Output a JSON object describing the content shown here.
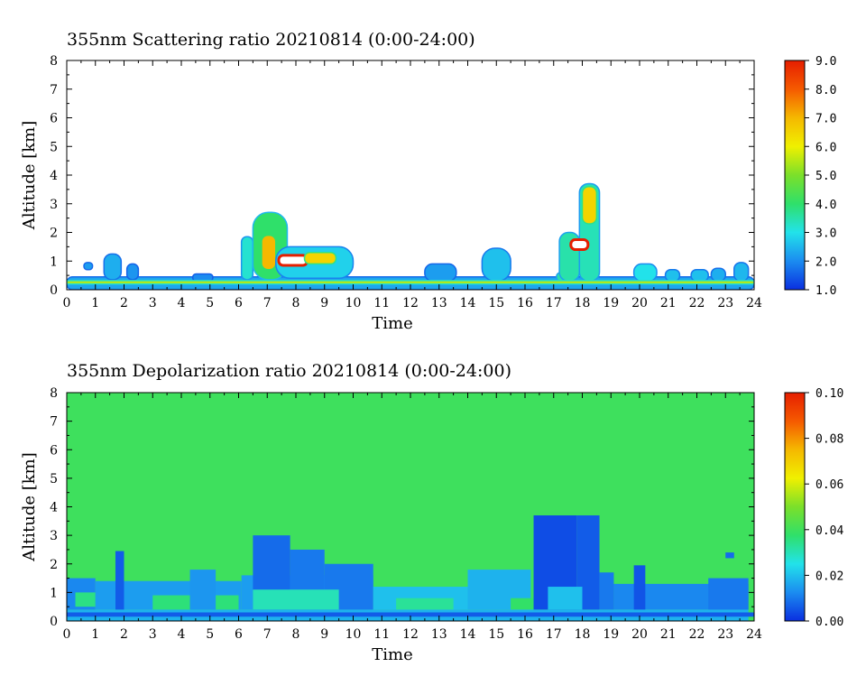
{
  "chart_data": [
    {
      "type": "heatmap",
      "title": "355nm Scattering ratio  20210814 (0:00-24:00)",
      "xlabel": "Time",
      "ylabel": "Altitude [km]",
      "xlim": [
        0,
        24
      ],
      "ylim": [
        0,
        8
      ],
      "x_ticks": [
        "0",
        "1",
        "2",
        "3",
        "4",
        "5",
        "6",
        "7",
        "8",
        "9",
        "10",
        "11",
        "12",
        "13",
        "14",
        "15",
        "16",
        "17",
        "18",
        "19",
        "20",
        "21",
        "22",
        "23",
        "24"
      ],
      "y_ticks": [
        "0",
        "1",
        "2",
        "3",
        "4",
        "5",
        "6",
        "7",
        "8"
      ],
      "colorbar": {
        "range": [
          1.0,
          9.0
        ],
        "labels": [
          "1.0",
          "2.0",
          "3.0",
          "4.0",
          "5.0",
          "6.0",
          "7.0",
          "8.0",
          "9.0"
        ],
        "colors": [
          "#0a2fe0",
          "#1b8cf0",
          "#22e2ea",
          "#2fe06a",
          "#7be02a",
          "#f0f000",
          "#f5b800",
          "#f55a00",
          "#e61e00"
        ]
      },
      "background_value": 1.0,
      "features": [
        {
          "t": [
            0.0,
            24.0
          ],
          "alt": [
            0.0,
            0.45
          ],
          "value": 2.3
        },
        {
          "t": [
            0.6,
            0.9
          ],
          "alt": [
            0.7,
            0.95
          ],
          "value": 2.2
        },
        {
          "t": [
            1.3,
            1.9
          ],
          "alt": [
            0.35,
            1.25
          ],
          "value": 2.4
        },
        {
          "t": [
            2.1,
            2.5
          ],
          "alt": [
            0.35,
            0.9
          ],
          "value": 2.1
        },
        {
          "t": [
            4.4,
            5.1
          ],
          "alt": [
            0.3,
            0.55
          ],
          "value": 2.0
        },
        {
          "t": [
            6.1,
            6.5
          ],
          "alt": [
            0.35,
            1.85
          ],
          "value": 3.2
        },
        {
          "t": [
            6.5,
            7.7
          ],
          "alt": [
            0.35,
            2.7
          ],
          "value": 4.0
        },
        {
          "t": [
            6.8,
            7.3
          ],
          "alt": [
            0.7,
            1.9
          ],
          "value": 7.0
        },
        {
          "t": [
            7.3,
            10.0
          ],
          "alt": [
            0.4,
            1.5
          ],
          "value": 2.8
        },
        {
          "t": [
            7.4,
            8.4
          ],
          "alt": [
            0.85,
            1.2
          ],
          "value": 9.0
        },
        {
          "t": [
            8.3,
            9.4
          ],
          "alt": [
            0.9,
            1.3
          ],
          "value": 6.5
        },
        {
          "t": [
            12.5,
            13.6
          ],
          "alt": [
            0.3,
            0.9
          ],
          "value": 2.2
        },
        {
          "t": [
            14.5,
            15.5
          ],
          "alt": [
            0.3,
            1.45
          ],
          "value": 2.6
        },
        {
          "t": [
            17.1,
            17.4
          ],
          "alt": [
            0.3,
            0.6
          ],
          "value": 3.5
        },
        {
          "t": [
            17.2,
            17.9
          ],
          "alt": [
            0.3,
            2.0
          ],
          "value": 3.5
        },
        {
          "t": [
            17.9,
            18.6
          ],
          "alt": [
            0.3,
            3.7
          ],
          "value": 3.4
        },
        {
          "t": [
            17.6,
            18.2
          ],
          "alt": [
            1.4,
            1.75
          ],
          "value": 9.0
        },
        {
          "t": [
            18.0,
            18.5
          ],
          "alt": [
            2.3,
            3.6
          ],
          "value": 6.5
        },
        {
          "t": [
            19.8,
            20.6
          ],
          "alt": [
            0.3,
            0.9
          ],
          "value": 3.0
        },
        {
          "t": [
            20.9,
            21.4
          ],
          "alt": [
            0.3,
            0.7
          ],
          "value": 2.6
        },
        {
          "t": [
            21.8,
            22.4
          ],
          "alt": [
            0.3,
            0.7
          ],
          "value": 2.6
        },
        {
          "t": [
            22.5,
            23.0
          ],
          "alt": [
            0.3,
            0.75
          ],
          "value": 2.4
        },
        {
          "t": [
            23.3,
            23.8
          ],
          "alt": [
            0.3,
            0.95
          ],
          "value": 2.5
        },
        {
          "t": [
            0.0,
            24.0
          ],
          "alt": [
            0.2,
            0.32
          ],
          "value": 5.5
        }
      ]
    },
    {
      "type": "heatmap",
      "title": "355nm Depolarization ratio  20210814 (0:00-24:00)",
      "xlabel": "Time",
      "ylabel": "Altitude [km]",
      "xlim": [
        0,
        24
      ],
      "ylim": [
        0,
        8
      ],
      "x_ticks": [
        "0",
        "1",
        "2",
        "3",
        "4",
        "5",
        "6",
        "7",
        "8",
        "9",
        "10",
        "11",
        "12",
        "13",
        "14",
        "15",
        "16",
        "17",
        "18",
        "19",
        "20",
        "21",
        "22",
        "23",
        "24"
      ],
      "y_ticks": [
        "0",
        "1",
        "2",
        "3",
        "4",
        "5",
        "6",
        "7",
        "8"
      ],
      "colorbar": {
        "range": [
          0.0,
          0.1
        ],
        "labels": [
          "0.00",
          "0.02",
          "0.04",
          "0.06",
          "0.08",
          "0.10"
        ],
        "colors": [
          "#0a2fe0",
          "#1b8cf0",
          "#22e2ea",
          "#2fe06a",
          "#7be02a",
          "#f0f000",
          "#f5b800",
          "#f55a00",
          "#e61e00"
        ]
      },
      "background_value": 0.04,
      "features": [
        {
          "t": [
            0.0,
            23.8
          ],
          "alt": [
            0.0,
            0.4
          ],
          "value": 0.018
        },
        {
          "t": [
            0.0,
            24.0
          ],
          "alt": [
            0.15,
            0.3
          ],
          "value": 0.006
        },
        {
          "t": [
            0.0,
            1.0
          ],
          "alt": [
            0.4,
            1.5
          ],
          "value": 0.012
        },
        {
          "t": [
            0.3,
            1.0
          ],
          "alt": [
            0.5,
            1.0
          ],
          "value": 0.035
        },
        {
          "t": [
            1.0,
            6.1
          ],
          "alt": [
            0.4,
            1.4
          ],
          "value": 0.015
        },
        {
          "t": [
            1.7,
            2.0
          ],
          "alt": [
            0.4,
            2.45
          ],
          "value": 0.006
        },
        {
          "t": [
            3.0,
            6.0
          ],
          "alt": [
            0.4,
            0.9
          ],
          "value": 0.036
        },
        {
          "t": [
            4.3,
            5.2
          ],
          "alt": [
            0.4,
            1.8
          ],
          "value": 0.014
        },
        {
          "t": [
            6.1,
            10.7
          ],
          "alt": [
            0.4,
            1.6
          ],
          "value": 0.015
        },
        {
          "t": [
            6.5,
            7.8
          ],
          "alt": [
            0.4,
            3.0
          ],
          "value": 0.008
        },
        {
          "t": [
            7.8,
            9.0
          ],
          "alt": [
            0.4,
            2.5
          ],
          "value": 0.01
        },
        {
          "t": [
            9.0,
            10.7
          ],
          "alt": [
            0.4,
            2.0
          ],
          "value": 0.01
        },
        {
          "t": [
            6.5,
            9.5
          ],
          "alt": [
            0.4,
            1.1
          ],
          "value": 0.03
        },
        {
          "t": [
            10.7,
            14.0
          ],
          "alt": [
            0.4,
            1.2
          ],
          "value": 0.02
        },
        {
          "t": [
            11.5,
            13.5
          ],
          "alt": [
            0.4,
            0.8
          ],
          "value": 0.033
        },
        {
          "t": [
            14.0,
            16.2
          ],
          "alt": [
            0.4,
            1.8
          ],
          "value": 0.018
        },
        {
          "t": [
            15.5,
            16.3
          ],
          "alt": [
            0.4,
            0.8
          ],
          "value": 0.038
        },
        {
          "t": [
            16.3,
            17.8
          ],
          "alt": [
            0.4,
            3.7
          ],
          "value": 0.004
        },
        {
          "t": [
            17.8,
            18.6
          ],
          "alt": [
            0.4,
            3.7
          ],
          "value": 0.006
        },
        {
          "t": [
            18.6,
            19.1
          ],
          "alt": [
            0.4,
            1.7
          ],
          "value": 0.01
        },
        {
          "t": [
            16.8,
            18.0
          ],
          "alt": [
            0.4,
            1.2
          ],
          "value": 0.02
        },
        {
          "t": [
            19.1,
            23.8
          ],
          "alt": [
            0.4,
            1.3
          ],
          "value": 0.012
        },
        {
          "t": [
            19.8,
            20.2
          ],
          "alt": [
            0.4,
            1.95
          ],
          "value": 0.005
        },
        {
          "t": [
            22.4,
            23.8
          ],
          "alt": [
            0.4,
            1.5
          ],
          "value": 0.01
        },
        {
          "t": [
            23.0,
            23.3
          ],
          "alt": [
            2.2,
            2.4
          ],
          "value": 0.008
        }
      ]
    }
  ]
}
